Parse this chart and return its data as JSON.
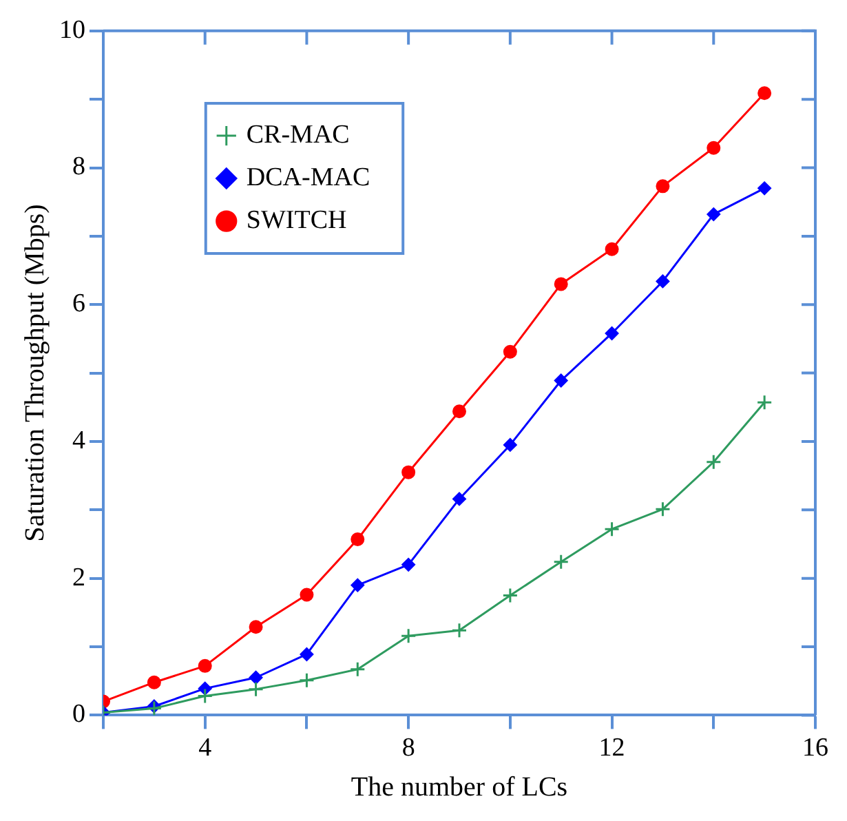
{
  "chart_data": {
    "type": "line",
    "xlabel": "The number of LCs",
    "ylabel": "Saturation Throughput (Mbps)",
    "x": [
      2,
      3,
      4,
      5,
      6,
      7,
      8,
      9,
      10,
      11,
      12,
      13,
      14,
      15
    ],
    "xlim": [
      2,
      16
    ],
    "xticks": [
      {
        "value": 2,
        "label": null
      },
      4,
      {
        "value": 6,
        "label": null
      },
      8,
      {
        "value": 10,
        "label": null
      },
      12,
      {
        "value": 14,
        "label": null
      },
      16
    ],
    "ylim": [
      0,
      10
    ],
    "yticks": [
      0,
      {
        "value": 1,
        "label": null
      },
      2,
      {
        "value": 3,
        "label": null
      },
      4,
      {
        "value": 5,
        "label": null
      },
      6,
      {
        "value": 7,
        "label": null
      },
      8,
      {
        "value": 9,
        "label": null
      },
      10
    ],
    "grid": false,
    "legend": "top left",
    "line_style": "solid",
    "series": [
      {
        "name": "CR-MAC",
        "color": "#2e9b5f",
        "marker": "cross",
        "values": [
          0.04,
          0.1,
          0.28,
          0.38,
          0.51,
          0.67,
          1.16,
          1.24,
          1.75,
          2.24,
          2.72,
          3.01,
          3.7,
          4.57
        ]
      },
      {
        "name": "DCA-MAC",
        "color": "#0000ff",
        "marker": "diamond",
        "values": [
          0.04,
          0.13,
          0.39,
          0.55,
          0.89,
          1.9,
          2.2,
          3.16,
          3.95,
          4.89,
          5.58,
          6.34,
          7.32,
          7.7
        ]
      },
      {
        "name": "SWITCH",
        "color": "#ff0000",
        "marker": "circle",
        "values": [
          0.2,
          0.48,
          0.72,
          1.29,
          1.76,
          2.57,
          3.55,
          4.44,
          5.31,
          6.3,
          6.81,
          7.73,
          8.29,
          9.09
        ]
      }
    ]
  }
}
